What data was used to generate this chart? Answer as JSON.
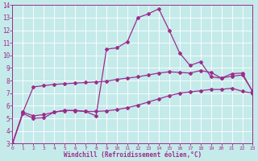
{
  "xlabel": "Windchill (Refroidissement éolien,°C)",
  "background_color": "#c5eaea",
  "line_color": "#9b2d8e",
  "xlim": [
    0,
    23
  ],
  "ylim": [
    3,
    14
  ],
  "xticks": [
    0,
    1,
    2,
    3,
    4,
    5,
    6,
    7,
    8,
    9,
    10,
    11,
    12,
    13,
    14,
    15,
    16,
    17,
    18,
    19,
    20,
    21,
    22,
    23
  ],
  "yticks": [
    3,
    4,
    5,
    6,
    7,
    8,
    9,
    10,
    11,
    12,
    13,
    14
  ],
  "series1": [
    3.0,
    5.5,
    5.2,
    5.3,
    5.5,
    5.6,
    5.65,
    5.55,
    5.2,
    10.5,
    10.6,
    11.1,
    13.0,
    13.3,
    13.7,
    12.0,
    10.2,
    9.2,
    9.5,
    8.3,
    8.2,
    8.55,
    8.6,
    7.1
  ],
  "series2": [
    3.0,
    5.5,
    7.5,
    7.6,
    7.7,
    7.75,
    7.8,
    7.85,
    7.9,
    7.95,
    8.1,
    8.2,
    8.3,
    8.45,
    8.6,
    8.7,
    8.65,
    8.6,
    8.8,
    8.65,
    8.2,
    8.35,
    8.45,
    7.15
  ],
  "series3": [
    3.0,
    5.4,
    5.0,
    5.05,
    5.5,
    5.65,
    5.6,
    5.55,
    5.55,
    5.6,
    5.7,
    5.85,
    6.05,
    6.3,
    6.55,
    6.8,
    7.0,
    7.1,
    7.2,
    7.3,
    7.3,
    7.4,
    7.15,
    7.0
  ]
}
